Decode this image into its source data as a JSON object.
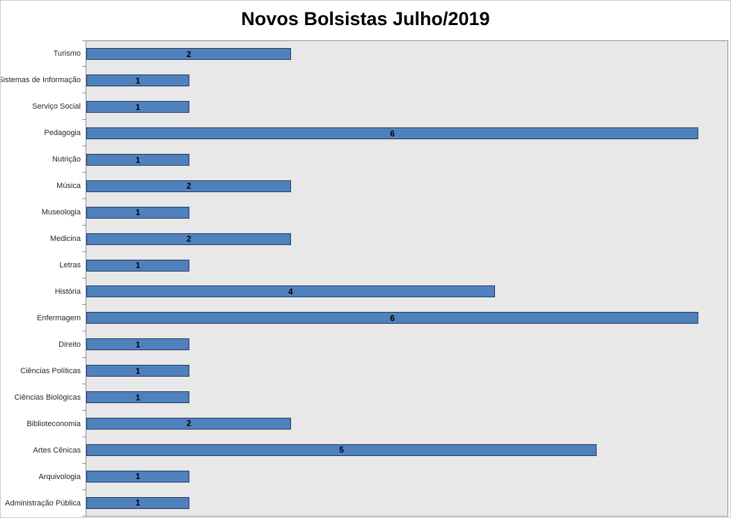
{
  "chart_data": {
    "type": "bar",
    "orientation": "horizontal",
    "title": "Novos Bolsistas Julho/2019",
    "categories": [
      "Turismo",
      "Sistemas de Informação",
      "Serviço Social",
      "Pedagogia",
      "Nutrição",
      "Música",
      "Museologia",
      "Medicina",
      "Letras",
      "História",
      "Enfermagem",
      "Direito",
      "Ciências Políticas",
      "Ciências Biológicas",
      "Biblioteconomia",
      "Artes Cênicas",
      "Arquivologia",
      "Administração Pública"
    ],
    "values": [
      2,
      1,
      1,
      6,
      1,
      2,
      1,
      2,
      1,
      4,
      6,
      1,
      1,
      1,
      2,
      5,
      1,
      1
    ],
    "xlabel": "",
    "ylabel": "",
    "xlim": [
      0,
      6.3
    ],
    "grid": false,
    "legend": false,
    "data_labels": true,
    "colors": {
      "bar_fill": "#4F81BD",
      "bar_border": "#1F3864",
      "plot_background": "#E8E8E8",
      "plot_border": "#8C8C8C",
      "label_text": "#262626",
      "value_text": "#000000",
      "title_text": "#000000"
    }
  }
}
